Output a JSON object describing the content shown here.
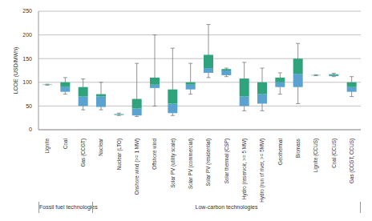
{
  "chart_data": {
    "type": "boxplot",
    "y_label": "LCOE (USD/MWh)",
    "categories": [
      "Lignite",
      "Coal",
      "Gas (CCGT)",
      "Nuclear",
      "Nuclear (LTO)",
      "Onshore wind (>= 1 MW)",
      "Offshore wind",
      "Solar PV (utility scale)",
      "Solar PV (commercial)",
      "Solar PV (residential)",
      "Solar thermal (CSP)",
      "Hydro (reservoir, >= 5 MW)",
      "Hydro (run of river, >= 5MW)",
      "Geothermal",
      "Biomass",
      "Lignite (CCUS)",
      "Coal (CCUS)",
      "Gas (CCGT, CCUS)"
    ],
    "min": [
      94,
      75,
      42,
      42,
      30,
      28,
      50,
      30,
      75,
      110,
      112,
      40,
      40,
      75,
      55,
      114,
      112,
      70
    ],
    "q1": [
      94.5,
      80,
      50,
      48,
      31,
      30,
      88,
      35,
      85,
      120,
      115,
      50,
      55,
      90,
      90,
      114.5,
      113,
      80
    ],
    "median": [
      95,
      90,
      70,
      70,
      32,
      45,
      95,
      55,
      95,
      130,
      125,
      70,
      75,
      100,
      118,
      115,
      115,
      90
    ],
    "q3": [
      95.5,
      100,
      90,
      75,
      33,
      65,
      110,
      85,
      100,
      158,
      128,
      108,
      100,
      110,
      150,
      115.5,
      117,
      100
    ],
    "max": [
      96,
      110,
      107,
      100,
      35,
      140,
      200,
      172,
      140,
      222,
      130,
      142,
      130,
      120,
      182,
      116,
      119,
      112
    ],
    "colors": [
      "#5aa3d0",
      "#2fa37c"
    ],
    "ylim": [
      0,
      250
    ],
    "yticks": [
      0,
      50,
      100,
      150,
      200,
      250
    ],
    "grid": true,
    "groups": [
      {
        "label": "Fossil fuel technologies",
        "categories": [
          "Lignite",
          "Coal",
          "Gas (CCGT)"
        ]
      },
      {
        "label": "Low-carbon technologies",
        "categories": [
          "Nuclear",
          "Nuclear (LTO)",
          "Onshore wind (>= 1 MW)",
          "Offshore wind",
          "Solar PV (utility scale)",
          "Solar PV (commercial)",
          "Solar PV (residential)",
          "Solar thermal (CSP)",
          "Hydro (reservoir, >= 5 MW)",
          "Hydro (run of river, >= 5MW)",
          "Geothermal",
          "Biomass",
          "Lignite (CCUS)",
          "Coal (CCUS)",
          "Gas (CCGT, CCUS)"
        ]
      }
    ]
  }
}
